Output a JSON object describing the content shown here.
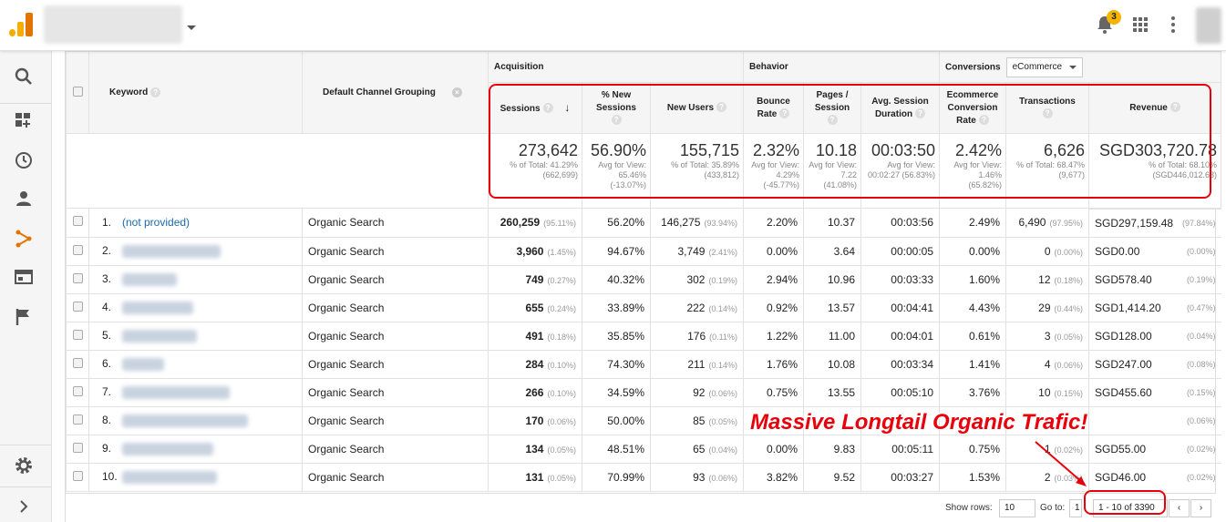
{
  "topbar": {
    "notification_count": "3"
  },
  "headers": {
    "keyword": "Keyword",
    "channel": "Default Channel Grouping",
    "acquisition": "Acquisition",
    "behavior": "Behavior",
    "conversions": "Conversions",
    "conversions_select": "eCommerce",
    "sessions": "Sessions",
    "new_sessions_1": "% New",
    "new_sessions_2": "Sessions",
    "new_users": "New Users",
    "bounce_1": "Bounce",
    "bounce_2": "Rate",
    "pages_1": "Pages /",
    "pages_2": "Session",
    "avg_1": "Avg. Session",
    "avg_2": "Duration",
    "ecr_1": "Ecommerce",
    "ecr_2": "Conversion",
    "ecr_3": "Rate",
    "transactions": "Transactions",
    "revenue": "Revenue"
  },
  "totals": {
    "sessions": "273,642",
    "sessions_sub": "% of Total: 41.29% (662,699)",
    "new_sessions": "56.90%",
    "new_sessions_sub": "Avg for View: 65.46% (-13.07%)",
    "new_users": "155,715",
    "new_users_sub": "% of Total: 35.89% (433,812)",
    "bounce": "2.32%",
    "bounce_sub": "Avg for View: 4.29% (-45.77%)",
    "pages": "10.18",
    "pages_sub": "Avg for View: 7.22 (41.08%)",
    "avg_dur": "00:03:50",
    "avg_dur_sub": "Avg for View: 00:02:27 (56.83%)",
    "ecr": "2.42%",
    "ecr_sub": "Avg for View: 1.46% (65.82%)",
    "transactions": "6,626",
    "transactions_sub": "% of Total: 68.47% (9,677)",
    "revenue": "SGD303,720.78",
    "revenue_sub": "% of Total: 68.10% (SGD446,012.63)"
  },
  "rows": [
    {
      "idx": "1.",
      "kw": "(not provided)",
      "ch": "Organic Search",
      "s": "260,259",
      "sp": "(95.11%)",
      "ns": "56.20%",
      "nu": "146,275",
      "nup": "(93.94%)",
      "br": "2.20%",
      "ps": "10.37",
      "ad": "00:03:56",
      "ecr": "2.49%",
      "tr": "6,490",
      "trp": "(97.95%)",
      "rev": "SGD297,159.48",
      "revp": "(97.84%)"
    },
    {
      "idx": "2.",
      "kw": "",
      "ch": "Organic Search",
      "s": "3,960",
      "sp": "(1.45%)",
      "ns": "94.67%",
      "nu": "3,749",
      "nup": "(2.41%)",
      "br": "0.00%",
      "ps": "3.64",
      "ad": "00:00:05",
      "ecr": "0.00%",
      "tr": "0",
      "trp": "(0.00%)",
      "rev": "SGD0.00",
      "revp": "(0.00%)"
    },
    {
      "idx": "3.",
      "kw": "",
      "ch": "Organic Search",
      "s": "749",
      "sp": "(0.27%)",
      "ns": "40.32%",
      "nu": "302",
      "nup": "(0.19%)",
      "br": "2.94%",
      "ps": "10.96",
      "ad": "00:03:33",
      "ecr": "1.60%",
      "tr": "12",
      "trp": "(0.18%)",
      "rev": "SGD578.40",
      "revp": "(0.19%)"
    },
    {
      "idx": "4.",
      "kw": "",
      "ch": "Organic Search",
      "s": "655",
      "sp": "(0.24%)",
      "ns": "33.89%",
      "nu": "222",
      "nup": "(0.14%)",
      "br": "0.92%",
      "ps": "13.57",
      "ad": "00:04:41",
      "ecr": "4.43%",
      "tr": "29",
      "trp": "(0.44%)",
      "rev": "SGD1,414.20",
      "revp": "(0.47%)"
    },
    {
      "idx": "5.",
      "kw": "",
      "ch": "Organic Search",
      "s": "491",
      "sp": "(0.18%)",
      "ns": "35.85%",
      "nu": "176",
      "nup": "(0.11%)",
      "br": "1.22%",
      "ps": "11.00",
      "ad": "00:04:01",
      "ecr": "0.61%",
      "tr": "3",
      "trp": "(0.05%)",
      "rev": "SGD128.00",
      "revp": "(0.04%)"
    },
    {
      "idx": "6.",
      "kw": "",
      "ch": "Organic Search",
      "s": "284",
      "sp": "(0.10%)",
      "ns": "74.30%",
      "nu": "211",
      "nup": "(0.14%)",
      "br": "1.76%",
      "ps": "10.08",
      "ad": "00:03:34",
      "ecr": "1.41%",
      "tr": "4",
      "trp": "(0.06%)",
      "rev": "SGD247.00",
      "revp": "(0.08%)"
    },
    {
      "idx": "7.",
      "kw": "",
      "ch": "Organic Search",
      "s": "266",
      "sp": "(0.10%)",
      "ns": "34.59%",
      "nu": "92",
      "nup": "(0.06%)",
      "br": "0.75%",
      "ps": "13.55",
      "ad": "00:05:10",
      "ecr": "3.76%",
      "tr": "10",
      "trp": "(0.15%)",
      "rev": "SGD455.60",
      "revp": "(0.15%)"
    },
    {
      "idx": "8.",
      "kw": "",
      "ch": "Organic Search",
      "s": "170",
      "sp": "(0.06%)",
      "ns": "50.00%",
      "nu": "85",
      "nup": "(0.05%)",
      "br": "",
      "ps": "",
      "ad": "",
      "ecr": "",
      "tr": "",
      "trp": "",
      "rev": "",
      "revp": "(0.06%)"
    },
    {
      "idx": "9.",
      "kw": "",
      "ch": "Organic Search",
      "s": "134",
      "sp": "(0.05%)",
      "ns": "48.51%",
      "nu": "65",
      "nup": "(0.04%)",
      "br": "0.00%",
      "ps": "9.83",
      "ad": "00:05:11",
      "ecr": "0.75%",
      "tr": "1",
      "trp": "(0.02%)",
      "rev": "SGD55.00",
      "revp": "(0.02%)"
    },
    {
      "idx": "10.",
      "kw": "",
      "ch": "Organic Search",
      "s": "131",
      "sp": "(0.05%)",
      "ns": "70.99%",
      "nu": "93",
      "nup": "(0.06%)",
      "br": "3.82%",
      "ps": "9.52",
      "ad": "00:03:27",
      "ecr": "1.53%",
      "tr": "2",
      "trp": "(0.03%)",
      "rev": "SGD46.00",
      "revp": "(0.02%)"
    }
  ],
  "footer": {
    "show_rows_label": "Show rows:",
    "show_rows_value": "10",
    "goto_label": "Go to:",
    "goto_value": "1",
    "range": "1 - 10 of 3390"
  },
  "annotation": {
    "text": "Massive Longtail Organic Trafic!",
    "color": "#e8000b"
  }
}
